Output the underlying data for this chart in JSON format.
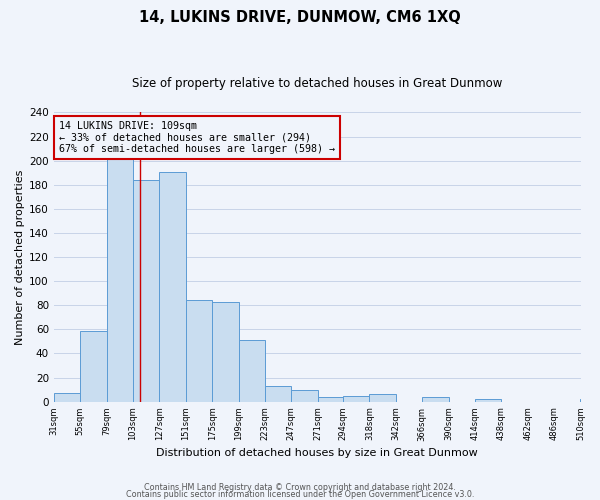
{
  "title": "14, LUKINS DRIVE, DUNMOW, CM6 1XQ",
  "subtitle": "Size of property relative to detached houses in Great Dunmow",
  "xlabel": "Distribution of detached houses by size in Great Dunmow",
  "ylabel": "Number of detached properties",
  "bar_values": [
    7,
    59,
    201,
    184,
    191,
    84,
    83,
    51,
    13,
    10,
    4,
    5,
    6,
    0,
    4,
    0,
    2,
    0,
    0,
    0,
    2
  ],
  "bin_labels": [
    "31sqm",
    "55sqm",
    "79sqm",
    "103sqm",
    "127sqm",
    "151sqm",
    "175sqm",
    "199sqm",
    "223sqm",
    "247sqm",
    "271sqm",
    "294sqm",
    "318sqm",
    "342sqm",
    "366sqm",
    "390sqm",
    "414sqm",
    "438sqm",
    "462sqm",
    "486sqm",
    "510sqm"
  ],
  "bin_edges": [
    31,
    55,
    79,
    103,
    127,
    151,
    175,
    199,
    223,
    247,
    271,
    294,
    318,
    342,
    366,
    390,
    414,
    438,
    462,
    486,
    510
  ],
  "bar_color": "#c9ddf0",
  "bar_edge_color": "#5b9bd5",
  "annotation_line1": "14 LUKINS DRIVE: 109sqm",
  "annotation_line2": "← 33% of detached houses are smaller (294)",
  "annotation_line3": "67% of semi-detached houses are larger (598) →",
  "annotation_box_edge": "#cc0000",
  "vline_x": 109,
  "vline_color": "#cc0000",
  "ylim": [
    0,
    240
  ],
  "yticks": [
    0,
    20,
    40,
    60,
    80,
    100,
    120,
    140,
    160,
    180,
    200,
    220,
    240
  ],
  "footer_line1": "Contains HM Land Registry data © Crown copyright and database right 2024.",
  "footer_line2": "Contains public sector information licensed under the Open Government Licence v3.0.",
  "bg_color": "#f0f4fb",
  "grid_color": "#c8d4e8"
}
